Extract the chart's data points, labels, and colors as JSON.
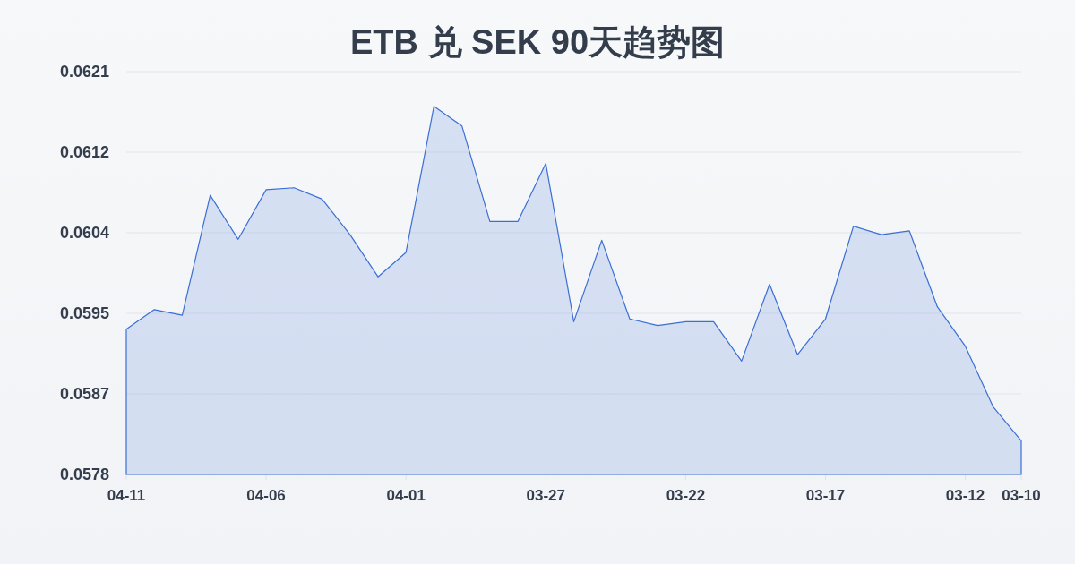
{
  "chart_data": {
    "type": "area",
    "title": "ETB 兑 SEK 90天趋势图",
    "categories": [
      "04-11",
      null,
      null,
      null,
      null,
      "04-06",
      null,
      null,
      null,
      null,
      "04-01",
      null,
      null,
      null,
      null,
      "03-27",
      null,
      null,
      null,
      null,
      "03-22",
      null,
      null,
      null,
      null,
      "03-17",
      null,
      null,
      null,
      null,
      "03-12",
      null,
      "03-10"
    ],
    "series": [
      {
        "color": "#3b6fd4",
        "values": [
          0.05935,
          0.05956,
          0.0595,
          0.06078,
          0.06031,
          0.06084,
          0.06086,
          0.06074,
          0.06036,
          0.05991,
          0.06017,
          0.06173,
          0.06152,
          0.0605,
          0.0605,
          0.06112,
          0.05943,
          0.0603,
          0.05946,
          0.05939,
          0.05943,
          0.05943,
          0.05901,
          0.05983,
          0.05908,
          0.05946,
          0.06045,
          0.06036,
          0.0604,
          0.05959,
          0.05917,
          0.05852,
          0.05816
        ]
      }
    ],
    "ylim": [
      0.0578,
      0.0621
    ],
    "yticks": [
      0.0578,
      {
        "value": 0.05866,
        "label": "0.0587"
      },
      {
        "value": 0.05952,
        "label": "0.0595"
      },
      {
        "value": 0.06038,
        "label": "0.0604"
      },
      {
        "value": 0.06124,
        "label": "0.0612"
      },
      0.0621
    ],
    "grid": "y"
  }
}
